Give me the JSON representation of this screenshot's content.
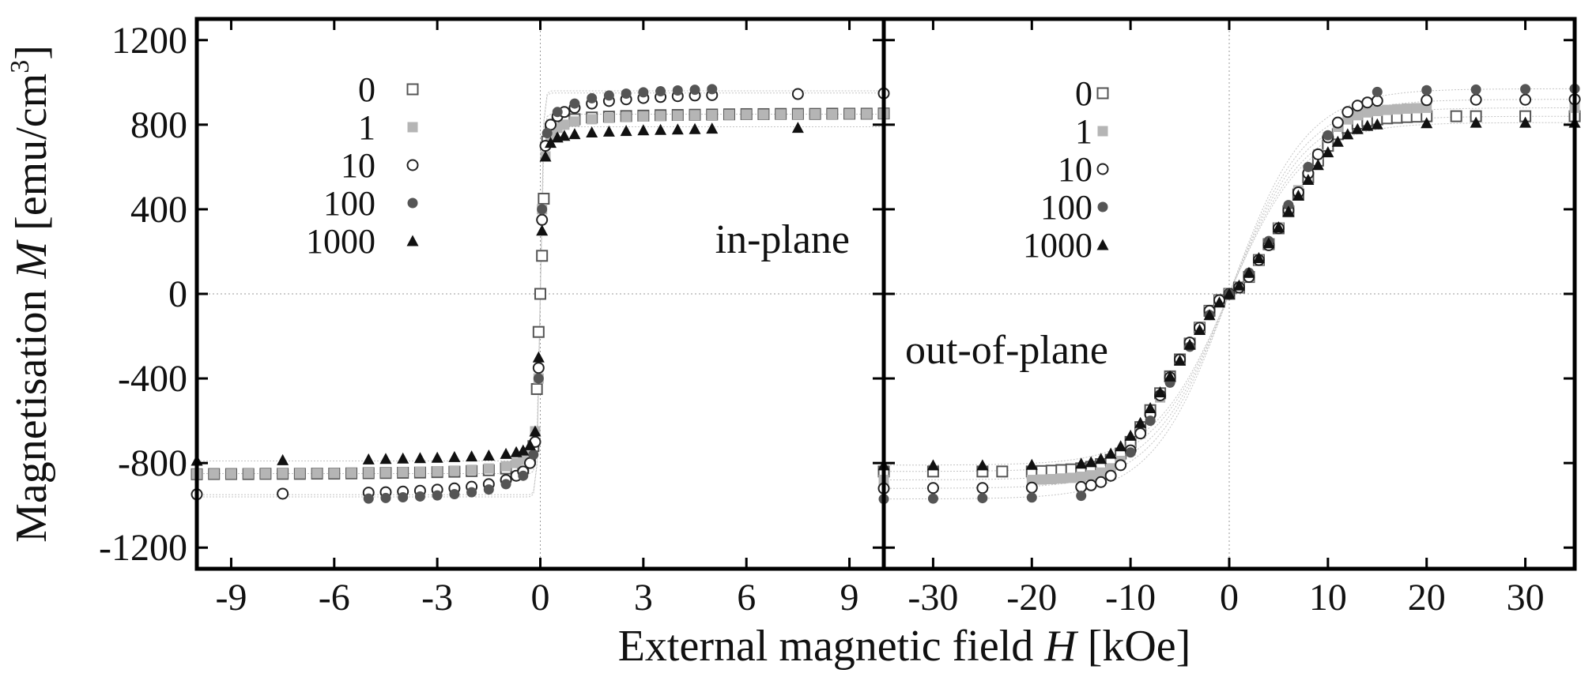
{
  "figure": {
    "ylabel_prefix": "Magnetisation ",
    "ylabel_symbol": "M",
    "ylabel_unit": " [emu/cm",
    "ylabel_exp": "3",
    "ylabel_close": "]",
    "xlabel_prefix": "External magnetic field ",
    "xlabel_symbol": "H",
    "xlabel_unit": " [kOe]"
  },
  "styles": {
    "0": {
      "marker": "square-open",
      "color": "#555555"
    },
    "1": {
      "marker": "square-filled",
      "color": "#b5b5b5"
    },
    "10": {
      "marker": "circle-open",
      "color": "#222222"
    },
    "100": {
      "marker": "circle-filled",
      "color": "#555555"
    },
    "1000": {
      "marker": "triangle-filled",
      "color": "#111111"
    }
  },
  "chart_data": [
    {
      "type": "scatter",
      "panel": "in-plane",
      "annotation": "in-plane",
      "xlim": [
        -10,
        10
      ],
      "ylim": [
        -1300,
        1300
      ],
      "x_ticks": [
        "-9",
        "-6",
        "-3",
        "0",
        "3",
        "6",
        "9"
      ],
      "y_ticks": [
        "-1200",
        "-800",
        "-400",
        "0",
        "400",
        "800",
        "1200"
      ],
      "legend": [
        "0",
        "1",
        "10",
        "100",
        "1000"
      ],
      "series": [
        {
          "name": "0",
          "Ms": 850,
          "x": [
            -10,
            -9.5,
            -9,
            -8.5,
            -8,
            -7.5,
            -7,
            -6.5,
            -6,
            -5.5,
            -5,
            -4.5,
            -4,
            -3.5,
            -3,
            -2.5,
            -2,
            -1.5,
            -1,
            -0.7,
            -0.5,
            -0.3,
            -0.2,
            -0.1,
            -0.05,
            0,
            0.05,
            0.1,
            0.2,
            0.3,
            0.5,
            0.7,
            1,
            1.5,
            2,
            2.5,
            3,
            3.5,
            4,
            4.5,
            5,
            5.5,
            6,
            6.5,
            7,
            7.5,
            8,
            8.5,
            9,
            9.5,
            10
          ],
          "y": [
            -853,
            -852,
            -852,
            -852,
            -851,
            -851,
            -851,
            -850,
            -850,
            -849,
            -848,
            -847,
            -846,
            -845,
            -843,
            -841,
            -838,
            -834,
            -826,
            -818,
            -810,
            -780,
            -720,
            -450,
            -180,
            0,
            180,
            450,
            720,
            780,
            810,
            818,
            826,
            834,
            838,
            841,
            843,
            845,
            846,
            847,
            848,
            849,
            850,
            850,
            851,
            851,
            851,
            852,
            852,
            852,
            853
          ]
        },
        {
          "name": "1",
          "Ms": 850,
          "x": [
            -10,
            -9.5,
            -9,
            -8.5,
            -8,
            -7.5,
            -7,
            -6.5,
            -6,
            -5.5,
            -5,
            -4.5,
            -4,
            -3.5,
            -3,
            -2.5,
            -2,
            -1.5,
            -1,
            -0.7,
            -0.5,
            -0.3,
            -0.15,
            -0.05,
            0.05,
            0.15,
            0.3,
            0.5,
            0.7,
            1,
            1.5,
            2,
            2.5,
            3,
            3.5,
            4,
            4.5,
            5,
            5.5,
            6,
            6.5,
            7,
            7.5,
            8,
            8.5,
            9,
            9.5,
            10
          ],
          "y": [
            -852,
            -851,
            -851,
            -850,
            -850,
            -849,
            -849,
            -848,
            -848,
            -847,
            -846,
            -845,
            -843,
            -841,
            -839,
            -836,
            -832,
            -826,
            -815,
            -800,
            -785,
            -750,
            -650,
            -400,
            400,
            650,
            750,
            785,
            800,
            815,
            826,
            832,
            836,
            839,
            841,
            843,
            845,
            846,
            847,
            848,
            848,
            849,
            849,
            850,
            850,
            851,
            851,
            852
          ]
        },
        {
          "name": "10",
          "Ms": 950,
          "x": [
            -10,
            -7.5,
            -5,
            -4.5,
            -4,
            -3.5,
            -3,
            -2.5,
            -2,
            -1.5,
            -1,
            -0.7,
            -0.5,
            -0.3,
            -0.15,
            -0.05,
            0.05,
            0.15,
            0.3,
            0.5,
            0.7,
            1,
            1.5,
            2,
            2.5,
            3,
            3.5,
            4,
            4.5,
            5,
            7.5,
            10
          ],
          "y": [
            -948,
            -945,
            -940,
            -938,
            -935,
            -931,
            -926,
            -920,
            -912,
            -900,
            -880,
            -860,
            -840,
            -800,
            -700,
            -350,
            350,
            700,
            800,
            840,
            860,
            880,
            900,
            912,
            920,
            926,
            931,
            935,
            938,
            940,
            945,
            948
          ]
        },
        {
          "name": "100",
          "Ms": 960,
          "x": [
            -5,
            -4.5,
            -4,
            -3.5,
            -3,
            -2.5,
            -2,
            -1.5,
            -1,
            -0.5,
            -0.2,
            -0.05,
            0.05,
            0.2,
            0.5,
            1,
            1.5,
            2,
            2.5,
            3,
            3.5,
            4,
            4.5,
            5
          ],
          "y": [
            -968,
            -965,
            -962,
            -958,
            -953,
            -947,
            -938,
            -925,
            -900,
            -860,
            -760,
            -400,
            400,
            760,
            860,
            900,
            925,
            938,
            947,
            953,
            958,
            962,
            965,
            968
          ]
        },
        {
          "name": "1000",
          "Ms": 790,
          "x": [
            -10,
            -7.5,
            -5,
            -4.5,
            -4,
            -3.5,
            -3,
            -2.5,
            -2,
            -1.5,
            -1,
            -0.7,
            -0.5,
            -0.3,
            -0.15,
            -0.05,
            0.05,
            0.15,
            0.3,
            0.5,
            0.7,
            1,
            1.5,
            2,
            2.5,
            3,
            3.5,
            4,
            4.5,
            5,
            7.5
          ],
          "y": [
            -788,
            -786,
            -782,
            -780,
            -778,
            -776,
            -774,
            -771,
            -768,
            -764,
            -756,
            -748,
            -740,
            -715,
            -650,
            -300,
            300,
            650,
            715,
            740,
            748,
            756,
            764,
            768,
            771,
            774,
            776,
            778,
            780,
            782,
            786
          ]
        }
      ]
    },
    {
      "type": "scatter",
      "panel": "out-of-plane",
      "annotation": "out-of-plane",
      "xlim": [
        -35,
        35
      ],
      "ylim": [
        -1300,
        1300
      ],
      "x_ticks": [
        "-30",
        "-20",
        "-10",
        "0",
        "10",
        "20",
        "30"
      ],
      "y_ticks": [
        "-1200",
        "-800",
        "-400",
        "0",
        "400",
        "800",
        "1200"
      ],
      "legend": [
        "0",
        "1",
        "10",
        "100",
        "1000"
      ],
      "series": [
        {
          "name": "0",
          "Ms": 840,
          "x": [
            -35,
            -30,
            -25,
            -23,
            -20,
            -19,
            -18,
            -17,
            -16,
            -15,
            -14,
            -13,
            -12,
            -11,
            -10,
            -9,
            -8,
            -7,
            -6,
            -5,
            -4,
            -3,
            -2,
            -1,
            0,
            1,
            2,
            3,
            4,
            5,
            6,
            7,
            8,
            9,
            10,
            11,
            12,
            13,
            14,
            15,
            16,
            17,
            18,
            19,
            20,
            23,
            25,
            30,
            35
          ],
          "y": [
            -840,
            -840,
            -840,
            -840,
            -840,
            -838,
            -836,
            -833,
            -830,
            -825,
            -818,
            -805,
            -785,
            -755,
            -700,
            -630,
            -550,
            -470,
            -390,
            -310,
            -235,
            -160,
            -80,
            -30,
            0,
            30,
            80,
            160,
            235,
            310,
            390,
            470,
            550,
            630,
            700,
            755,
            785,
            805,
            818,
            825,
            830,
            833,
            836,
            838,
            840,
            840,
            840,
            840,
            840
          ]
        },
        {
          "name": "1",
          "Ms": 880,
          "x": [
            -35,
            -20,
            -19,
            -18,
            -17,
            -16,
            -15,
            -14,
            -13,
            -12,
            -11,
            -10,
            -9,
            -8,
            -7,
            -6,
            -5,
            -4,
            -3,
            -2,
            -1,
            0,
            1,
            2,
            3,
            4,
            5,
            6,
            7,
            8,
            9,
            10,
            11,
            12,
            13,
            14,
            15,
            16,
            17,
            18,
            19,
            20,
            35
          ],
          "y": [
            -880,
            -880,
            -878,
            -876,
            -873,
            -870,
            -865,
            -858,
            -845,
            -825,
            -790,
            -740,
            -660,
            -580,
            -490,
            -400,
            -315,
            -235,
            -160,
            -80,
            -30,
            0,
            30,
            80,
            160,
            235,
            315,
            400,
            490,
            580,
            660,
            740,
            790,
            825,
            845,
            858,
            865,
            870,
            873,
            876,
            878,
            880,
            880
          ]
        },
        {
          "name": "10",
          "Ms": 920,
          "x": [
            -35,
            -30,
            -25,
            -20,
            -15,
            -14,
            -13,
            -12,
            -11,
            -10,
            -9,
            -8,
            -7,
            -6,
            -5,
            -4,
            -3,
            -2,
            -1,
            0,
            1,
            2,
            3,
            4,
            5,
            6,
            7,
            8,
            9,
            10,
            11,
            12,
            13,
            14,
            15,
            20,
            25,
            30,
            35
          ],
          "y": [
            -920,
            -918,
            -918,
            -916,
            -913,
            -905,
            -890,
            -860,
            -810,
            -740,
            -660,
            -570,
            -480,
            -395,
            -310,
            -230,
            -160,
            -80,
            -30,
            0,
            30,
            80,
            160,
            230,
            310,
            395,
            480,
            570,
            660,
            740,
            810,
            860,
            890,
            905,
            913,
            916,
            918,
            918,
            920
          ]
        },
        {
          "name": "100",
          "Ms": 970,
          "x": [
            -35,
            -30,
            -25,
            -20,
            -15,
            -10,
            -8,
            -6,
            -4,
            -2,
            0,
            2,
            4,
            6,
            8,
            10,
            15,
            20,
            25,
            30,
            35
          ],
          "y": [
            -970,
            -968,
            -966,
            -963,
            -955,
            -750,
            -600,
            -420,
            -250,
            -100,
            0,
            100,
            250,
            420,
            600,
            750,
            955,
            963,
            966,
            968,
            970
          ]
        },
        {
          "name": "1000",
          "Ms": 810,
          "x": [
            -35,
            -30,
            -25,
            -20,
            -15,
            -14,
            -13,
            -12,
            -11,
            -10,
            -9,
            -8,
            -7,
            -6,
            -5,
            -4,
            -3,
            -2,
            -1,
            0,
            1,
            2,
            3,
            4,
            5,
            6,
            7,
            8,
            9,
            10,
            11,
            12,
            13,
            14,
            15,
            20,
            25,
            30,
            35
          ],
          "y": [
            -810,
            -810,
            -810,
            -808,
            -802,
            -795,
            -780,
            -755,
            -720,
            -670,
            -610,
            -540,
            -465,
            -390,
            -315,
            -240,
            -170,
            -100,
            -40,
            0,
            40,
            100,
            170,
            240,
            315,
            390,
            465,
            540,
            610,
            670,
            720,
            755,
            780,
            795,
            802,
            808,
            810,
            810,
            810
          ]
        }
      ]
    }
  ]
}
